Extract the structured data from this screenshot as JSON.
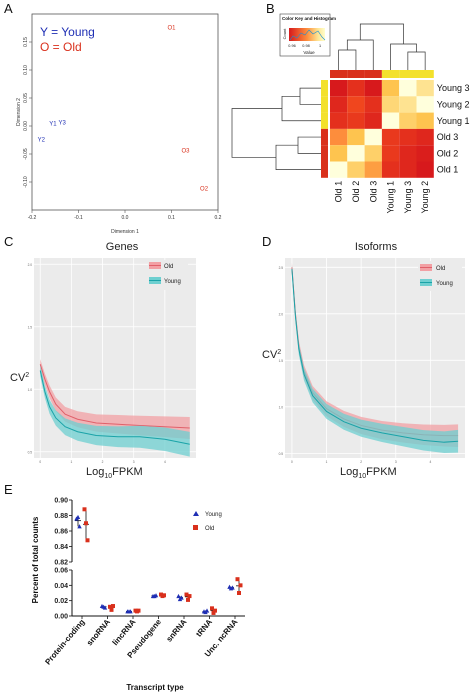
{
  "panels": {
    "a": "A",
    "b": "B",
    "c": "C",
    "d": "D",
    "e": "E"
  },
  "colors": {
    "young": "#1f2fb4",
    "old": "#d9301c",
    "old_band": "#f2a0a4",
    "young_band": "#6ecfd0",
    "e_young": "#1f2fb4",
    "e_old": "#d9301c"
  },
  "chart_data": [
    {
      "id": "A",
      "type": "scatter",
      "legend_young": "Y = Young",
      "legend_old": "O = Old",
      "xlabel": "Dimension 1",
      "ylabel": "Dimension 2",
      "xlim": [
        -0.2,
        0.2
      ],
      "ylim": [
        -0.15,
        0.2
      ],
      "xticks": [
        "-0.2",
        "-0.1",
        "0.0",
        "0.1",
        "0.2"
      ],
      "yticks": [
        "-0.10",
        "-0.05",
        "0.00",
        "0.05",
        "0.10",
        "0.15"
      ],
      "points": [
        {
          "label": "Y1",
          "group": "young",
          "x": -0.155,
          "y": 0.001
        },
        {
          "label": "Y3",
          "group": "young",
          "x": -0.135,
          "y": 0.003
        },
        {
          "label": "Y2",
          "group": "young",
          "x": -0.18,
          "y": -0.028
        },
        {
          "label": "O1",
          "group": "old",
          "x": 0.1,
          "y": 0.172
        },
        {
          "label": "O3",
          "group": "old",
          "x": 0.13,
          "y": -0.047
        },
        {
          "label": "O2",
          "group": "old",
          "x": 0.17,
          "y": -0.115
        }
      ]
    },
    {
      "id": "B",
      "type": "heatmap",
      "key_title": "Color Key and Histogram",
      "key_xlabel": "Value",
      "key_ylabel": "Count",
      "key_ticks": [
        "0.96",
        "0.98",
        "1"
      ],
      "rows": [
        "Young 3",
        "Young 2",
        "Young 1",
        "Old 3",
        "Old 2",
        "Old 1"
      ],
      "cols": [
        "Old 1",
        "Old 2",
        "Old 3",
        "Young 1",
        "Young 3",
        "Young 2"
      ],
      "col_groups": [
        "old",
        "old",
        "old",
        "young",
        "young",
        "young"
      ],
      "row_groups": [
        "young",
        "young",
        "young",
        "old",
        "old",
        "old"
      ],
      "values": [
        [
          0.955,
          0.96,
          0.955,
          0.985,
          1.0,
          0.99
        ],
        [
          0.958,
          0.965,
          0.96,
          0.988,
          0.99,
          1.0
        ],
        [
          0.96,
          0.962,
          0.958,
          1.0,
          0.987,
          0.985
        ],
        [
          0.975,
          0.985,
          1.0,
          0.962,
          0.96,
          0.958
        ],
        [
          0.985,
          1.0,
          0.987,
          0.962,
          0.958,
          0.956
        ],
        [
          1.0,
          0.987,
          0.978,
          0.96,
          0.958,
          0.955
        ]
      ]
    },
    {
      "id": "C",
      "type": "line",
      "title": "Genes",
      "xlabel_main": "Log",
      "xlabel_sub": "10",
      "xlabel_tail": "FPKM",
      "ylabel_main": "CV",
      "ylabel_sup": "2",
      "xlim": [
        -0.2,
        5
      ],
      "ylim": [
        0.45,
        2.05
      ],
      "series": [
        {
          "name": "Old",
          "x": [
            0,
            0.15,
            0.3,
            0.5,
            0.8,
            1.2,
            1.8,
            2.5,
            3.2,
            4,
            4.8
          ],
          "y": [
            1.2,
            1.08,
            0.98,
            0.88,
            0.8,
            0.76,
            0.73,
            0.72,
            0.71,
            0.7,
            0.69
          ],
          "band": 0.04
        },
        {
          "name": "Young",
          "x": [
            0,
            0.15,
            0.3,
            0.5,
            0.8,
            1.2,
            1.8,
            2.5,
            3.2,
            4,
            4.8
          ],
          "y": [
            1.15,
            0.98,
            0.86,
            0.77,
            0.7,
            0.66,
            0.63,
            0.62,
            0.62,
            0.6,
            0.56
          ],
          "band": 0.045
        }
      ],
      "yticks": [
        "0.5",
        "1.0",
        "1.5",
        "2.0"
      ],
      "xticks": [
        "0",
        "1",
        "2",
        "3",
        "4"
      ]
    },
    {
      "id": "D",
      "type": "line",
      "title": "Isoforms",
      "xlabel_main": "Log",
      "xlabel_sub": "10",
      "xlabel_tail": "FPKM",
      "ylabel_main": "CV",
      "ylabel_sup": "2",
      "xlim": [
        -0.2,
        5
      ],
      "ylim": [
        0.45,
        2.6
      ],
      "series": [
        {
          "name": "Old",
          "x": [
            0,
            0.1,
            0.2,
            0.35,
            0.6,
            1.0,
            1.5,
            2.0,
            2.6,
            3.2,
            3.8,
            4.4,
            4.8
          ],
          "y": [
            2.5,
            2.0,
            1.65,
            1.38,
            1.15,
            0.98,
            0.87,
            0.8,
            0.75,
            0.72,
            0.7,
            0.69,
            0.69
          ],
          "band": 0.05
        },
        {
          "name": "Young",
          "x": [
            0,
            0.1,
            0.2,
            0.35,
            0.6,
            1.0,
            1.5,
            2.0,
            2.6,
            3.2,
            3.8,
            4.4,
            4.8
          ],
          "y": [
            2.48,
            1.98,
            1.62,
            1.35,
            1.12,
            0.95,
            0.84,
            0.77,
            0.72,
            0.68,
            0.64,
            0.62,
            0.63
          ],
          "band": 0.05
        }
      ],
      "yticks": [
        "0.5",
        "1.0",
        "1.5",
        "2.0",
        "2.5"
      ],
      "xticks": [
        "0",
        "1",
        "2",
        "3",
        "4"
      ]
    },
    {
      "id": "E",
      "type": "scatter",
      "ylabel": "Percent of total counts",
      "xlabel": "Transcript type",
      "legend": [
        "Young",
        "Old"
      ],
      "categories": [
        "Protein-coding",
        "snoRNA",
        "lincRNA",
        "Pseudogene",
        "snRNA",
        "tRNA",
        "Unc. ncRNA"
      ],
      "upper_ylim": [
        0.82,
        0.9
      ],
      "upper_yticks": [
        "0.82",
        "0.84",
        "0.86",
        "0.88",
        "0.90"
      ],
      "lower_ylim": [
        0.0,
        0.06
      ],
      "lower_yticks": [
        "0.00",
        "0.02",
        "0.04",
        "0.06"
      ],
      "series": [
        {
          "name": "Young",
          "panel": [
            "upper",
            "lower",
            "lower",
            "lower",
            "lower",
            "lower",
            "lower"
          ],
          "points": [
            [
              0.876,
              0.878,
              0.866
            ],
            [
              0.013,
              0.012,
              0.011
            ],
            [
              0.006,
              0.006,
              0.006
            ],
            [
              0.026,
              0.026,
              0.027
            ],
            [
              0.026,
              0.022,
              0.024
            ],
            [
              0.006,
              0.005,
              0.007
            ],
            [
              0.038,
              0.036,
              0.037
            ]
          ]
        },
        {
          "name": "Old",
          "panel": [
            "upper",
            "lower",
            "lower",
            "lower",
            "lower",
            "lower",
            "lower"
          ],
          "points": [
            [
              0.888,
              0.87,
              0.848
            ],
            [
              0.012,
              0.008,
              0.013
            ],
            [
              0.007,
              0.006,
              0.007
            ],
            [
              0.028,
              0.026,
              0.027
            ],
            [
              0.028,
              0.021,
              0.026
            ],
            [
              0.01,
              0.004,
              0.007
            ],
            [
              0.048,
              0.03,
              0.04
            ]
          ]
        }
      ]
    }
  ]
}
